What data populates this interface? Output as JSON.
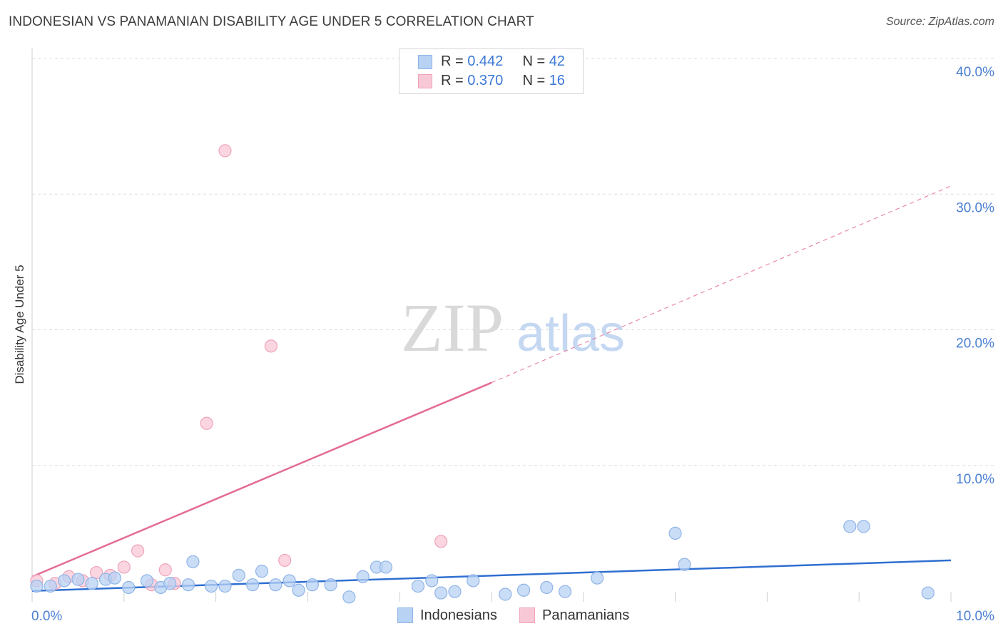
{
  "title": "INDONESIAN VS PANAMANIAN DISABILITY AGE UNDER 5 CORRELATION CHART",
  "source": "Source: ZipAtlas.com",
  "watermark": {
    "zip": "ZIP",
    "atlas": "atlas"
  },
  "legend": {
    "rows": [
      {
        "r_label": "R = ",
        "r_value": "0.442",
        "n_label": "N = ",
        "n_value": "42"
      },
      {
        "r_label": "R = ",
        "r_value": "0.370",
        "n_label": "N = ",
        "n_value": "16"
      }
    ]
  },
  "colors": {
    "indonesian_fill": "#b8d2f4",
    "indonesian_stroke": "#8fb4e6",
    "indonesian_line": "#2f6fd1",
    "panamanian_fill": "#f9c8d6",
    "panamanian_stroke": "#eea3bb",
    "panamanian_line": "#e46b93",
    "tick_text": "#4a7fd1",
    "grid": "#dddddd"
  },
  "chart_data": {
    "type": "scatter",
    "title": "INDONESIAN VS PANAMANIAN DISABILITY AGE UNDER 5 CORRELATION CHART",
    "xlabel": "",
    "ylabel": "Disability Age Under 5",
    "xlim": [
      0,
      10
    ],
    "ylim": [
      0,
      41
    ],
    "x_tick_labels": [
      "0.0%",
      "10.0%"
    ],
    "y_ticks": [
      10,
      20,
      30,
      40
    ],
    "y_tick_labels": [
      "10.0%",
      "20.0%",
      "30.0%",
      "40.0%"
    ],
    "grid": true,
    "series": [
      {
        "name": "Indonesians",
        "r": 0.442,
        "n": 42,
        "points": [
          [
            0.05,
            1.1
          ],
          [
            0.2,
            1.1
          ],
          [
            0.35,
            1.5
          ],
          [
            0.5,
            1.6
          ],
          [
            0.65,
            1.3
          ],
          [
            0.8,
            1.6
          ],
          [
            0.9,
            1.7
          ],
          [
            1.05,
            1.0
          ],
          [
            1.25,
            1.5
          ],
          [
            1.4,
            1.0
          ],
          [
            1.5,
            1.3
          ],
          [
            1.7,
            1.2
          ],
          [
            1.75,
            2.9
          ],
          [
            1.95,
            1.1
          ],
          [
            2.1,
            1.1
          ],
          [
            2.25,
            1.9
          ],
          [
            2.4,
            1.2
          ],
          [
            2.5,
            2.2
          ],
          [
            2.65,
            1.2
          ],
          [
            2.8,
            1.5
          ],
          [
            2.9,
            0.8
          ],
          [
            3.05,
            1.2
          ],
          [
            3.25,
            1.2
          ],
          [
            3.45,
            0.3
          ],
          [
            3.6,
            1.8
          ],
          [
            3.75,
            2.5
          ],
          [
            3.85,
            2.5
          ],
          [
            4.2,
            1.1
          ],
          [
            4.35,
            1.5
          ],
          [
            4.45,
            0.6
          ],
          [
            4.6,
            0.7
          ],
          [
            4.8,
            1.5
          ],
          [
            5.15,
            0.5
          ],
          [
            5.35,
            0.8
          ],
          [
            5.6,
            1.0
          ],
          [
            5.8,
            0.7
          ],
          [
            6.15,
            1.7
          ],
          [
            7.0,
            5.0
          ],
          [
            7.1,
            2.7
          ],
          [
            8.9,
            5.5
          ],
          [
            9.05,
            5.5
          ],
          [
            9.75,
            0.6
          ]
        ],
        "trend": {
          "x": [
            0,
            10
          ],
          "y": [
            0.75,
            3.0
          ],
          "style": "solid"
        }
      },
      {
        "name": "Panamanians",
        "r": 0.37,
        "n": 16,
        "points": [
          [
            0.05,
            1.5
          ],
          [
            0.25,
            1.3
          ],
          [
            0.4,
            1.8
          ],
          [
            0.55,
            1.5
          ],
          [
            0.7,
            2.1
          ],
          [
            0.85,
            1.9
          ],
          [
            1.0,
            2.5
          ],
          [
            1.15,
            3.7
          ],
          [
            1.3,
            1.2
          ],
          [
            1.45,
            2.3
          ],
          [
            1.55,
            1.3
          ],
          [
            1.9,
            13.1
          ],
          [
            2.1,
            33.2
          ],
          [
            2.6,
            18.8
          ],
          [
            2.75,
            3.0
          ],
          [
            4.45,
            4.4
          ]
        ],
        "trend": {
          "x": [
            0,
            5.0
          ],
          "y": [
            1.8,
            16.1
          ],
          "style": "solid"
        },
        "trend_extension": {
          "x": [
            5.0,
            10
          ],
          "y": [
            16.1,
            30.6
          ],
          "style": "dashed"
        }
      }
    ]
  }
}
